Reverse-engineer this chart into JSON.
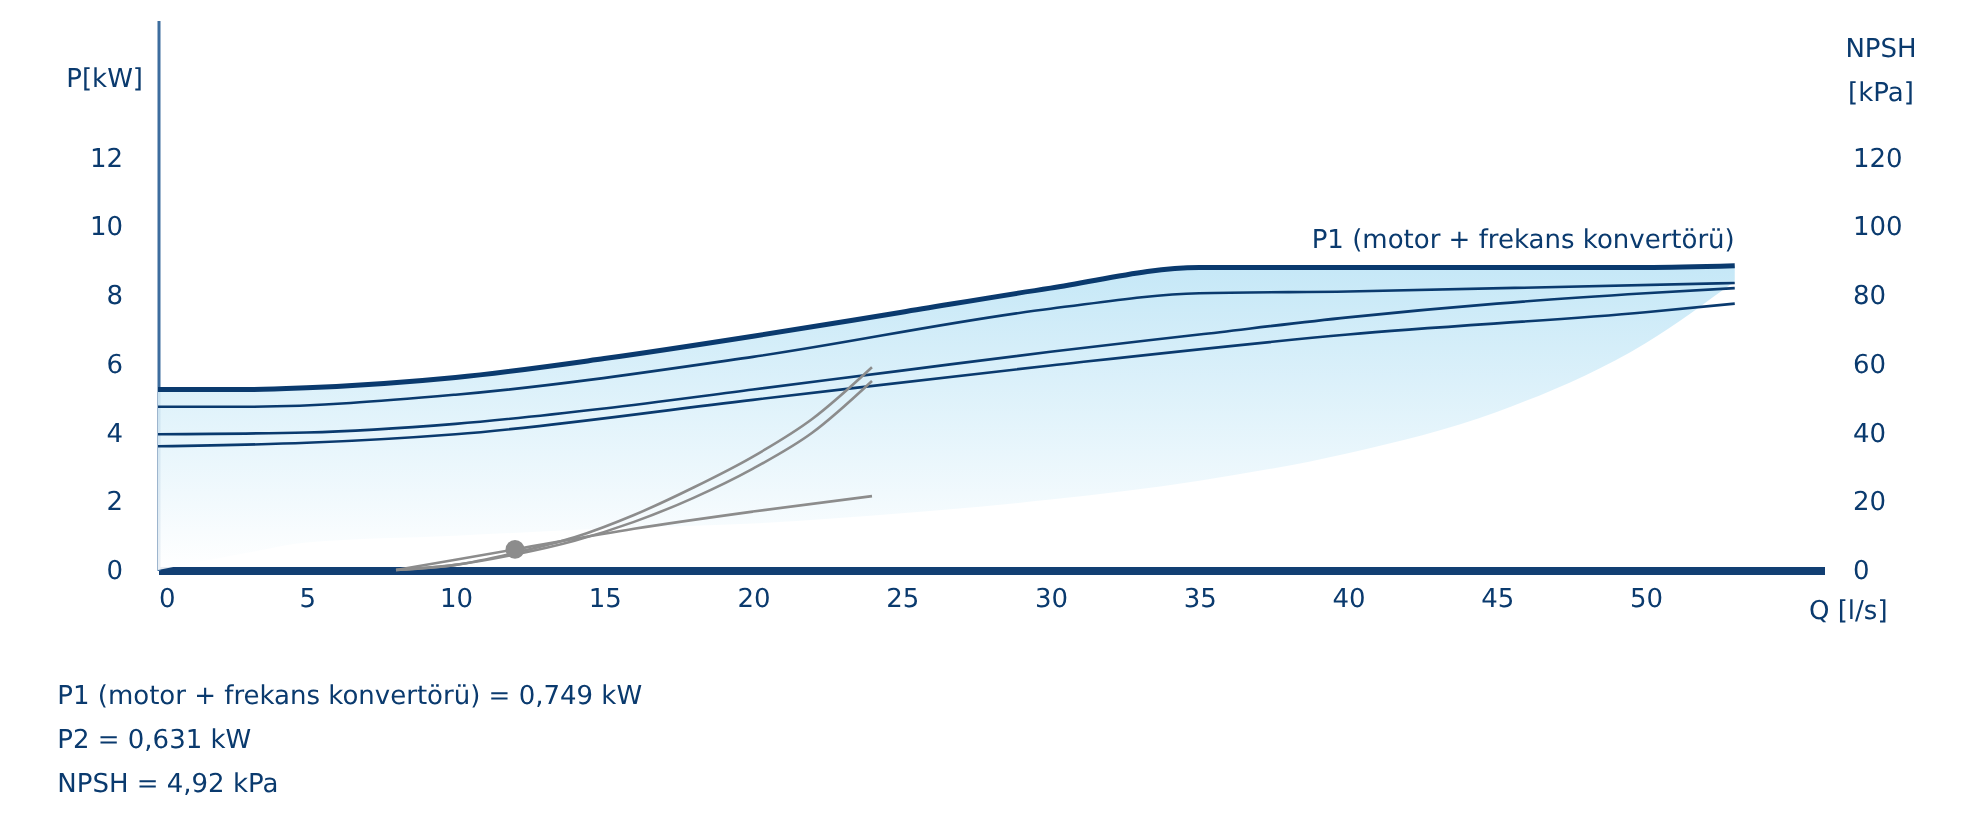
{
  "chart_data": {
    "type": "line",
    "xlabel": "Q [l/s]",
    "ylabel": "P[kW]",
    "y2label": "NPSH\n[kPa]",
    "xlim": [
      0,
      56
    ],
    "xticks": [
      0,
      5,
      10,
      15,
      20,
      25,
      30,
      35,
      40,
      45,
      50
    ],
    "ylim": [
      0,
      16
    ],
    "yticks": [
      0,
      2,
      4,
      6,
      8,
      10,
      12
    ],
    "y2lim": [
      0,
      160
    ],
    "y2ticks": [
      0,
      20,
      40,
      60,
      80,
      100,
      120
    ],
    "grid": false,
    "series": [
      {
        "name": "P1 (motor + frekans konvertörü)",
        "color": "#0a3a6e",
        "x": [
          0,
          3,
          5,
          10,
          15,
          20,
          25,
          30,
          35,
          40,
          45,
          50,
          53
        ],
        "values": [
          5.25,
          5.25,
          5.3,
          5.6,
          6.15,
          6.8,
          7.5,
          8.2,
          8.8,
          8.8,
          8.8,
          8.8,
          8.85
        ],
        "lower": [
          0,
          0.5,
          0.8,
          1.0,
          1.2,
          1.35,
          1.65,
          2.05,
          2.6,
          3.4,
          4.6,
          6.6,
          8.4
        ],
        "upper": [
          5.25,
          5.25,
          5.3,
          5.6,
          6.15,
          6.8,
          7.5,
          8.2,
          8.8,
          8.8,
          8.8,
          8.8,
          8.85
        ]
      },
      {
        "color": "#0a3a6e",
        "x": [
          0,
          3,
          10,
          20,
          30,
          35,
          40,
          53
        ],
        "values": [
          4.75,
          4.75,
          5.1,
          6.2,
          7.6,
          8.05,
          8.1,
          8.35
        ]
      },
      {
        "color": "#0a3a6e",
        "x": [
          0,
          5,
          10,
          15,
          20,
          25,
          30,
          35,
          40,
          45,
          50,
          53
        ],
        "values": [
          3.95,
          4.0,
          4.25,
          4.7,
          5.25,
          5.8,
          6.35,
          6.85,
          7.35,
          7.75,
          8.05,
          8.2
        ]
      },
      {
        "color": "#0a3a6e",
        "x": [
          0,
          5,
          10,
          20,
          30,
          40,
          50,
          53
        ],
        "values": [
          3.6,
          3.7,
          3.95,
          4.95,
          5.95,
          6.85,
          7.5,
          7.75
        ]
      },
      {
        "color": "#8c8c8c",
        "x": [
          8,
          10,
          12,
          14,
          16,
          18,
          20,
          22,
          24
        ],
        "values": [
          0,
          0.15,
          0.5,
          0.95,
          1.6,
          2.4,
          3.3,
          4.4,
          5.9
        ]
      },
      {
        "color": "#8c8c8c",
        "x": [
          8,
          10,
          12,
          14,
          16,
          18,
          20,
          22,
          24
        ],
        "values": [
          0,
          0.15,
          0.45,
          0.85,
          1.4,
          2.1,
          2.95,
          4.0,
          5.5
        ]
      },
      {
        "color": "#8c8c8c",
        "x": [
          8,
          12,
          16,
          20,
          24
        ],
        "values": [
          0,
          0.6,
          1.2,
          1.7,
          2.15
        ]
      },
      {
        "type": "scatter",
        "marker": "circle",
        "color": "#8c8c8c",
        "x": [
          12
        ],
        "values": [
          0.6
        ]
      }
    ],
    "annotations": [
      "P1 (motor + frekans konvertörü) = 0,749 kW",
      "P2 = 0,631 kW",
      "NPSH = 4,92 kPa"
    ]
  }
}
